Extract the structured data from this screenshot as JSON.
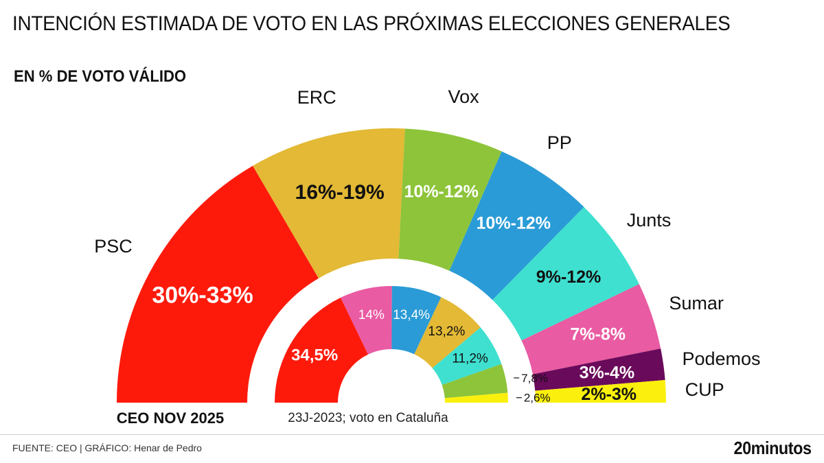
{
  "title": "INTENCIÓN ESTIMADA DE VOTO EN LAS PRÓXIMAS ELECCIONES GENERALES",
  "subtitle": "EN % DE VOTO VÁLIDO",
  "source": "FUENTE: CEO  |  GRÁFICO: Henar de Pedro",
  "logo": "20minutos",
  "chart_data": {
    "type": "pie",
    "variant": "semicircle-donut",
    "series": [
      {
        "name": "CEO NOV 2025",
        "categories": [
          "PSC",
          "ERC",
          "Vox",
          "PP",
          "Junts",
          "Sumar",
          "Podemos",
          "CUP"
        ],
        "labels": [
          "30%-33%",
          "16%-19%",
          "10%-12%",
          "10%-12%",
          "9%-12%",
          "7%-8%",
          "3%-4%",
          "2%-3%"
        ],
        "values": [
          31.5,
          17.5,
          11,
          11,
          10.5,
          7.5,
          3.5,
          2.5
        ],
        "colors": [
          "#fe1a0b",
          "#e3b935",
          "#8dc43a",
          "#2a9bd6",
          "#3fe0d0",
          "#e95ba2",
          "#6a0a5b",
          "#fbf00d"
        ],
        "text_colors": [
          "#ffffff",
          "#111111",
          "#ffffff",
          "#ffffff",
          "#111111",
          "#ffffff",
          "#ffffff",
          "#111111"
        ]
      },
      {
        "name": "23J-2023; voto en Cataluña",
        "values": [
          34.5,
          14,
          13.4,
          13.2,
          11.2,
          7.8,
          2.6
        ],
        "labels": [
          "34,5%",
          "14%",
          "13,4%",
          "13,2%",
          "11,2%",
          "7,8%",
          "2,6%"
        ],
        "colors": [
          "#fe1a0b",
          "#e95ba2",
          "#2a9bd6",
          "#e3b935",
          "#3fe0d0",
          "#8dc43a",
          "#fbf00d"
        ],
        "text_colors": [
          "#ffffff",
          "#ffffff",
          "#ffffff",
          "#111111",
          "#111111",
          "#111111",
          "#111111"
        ]
      }
    ]
  }
}
